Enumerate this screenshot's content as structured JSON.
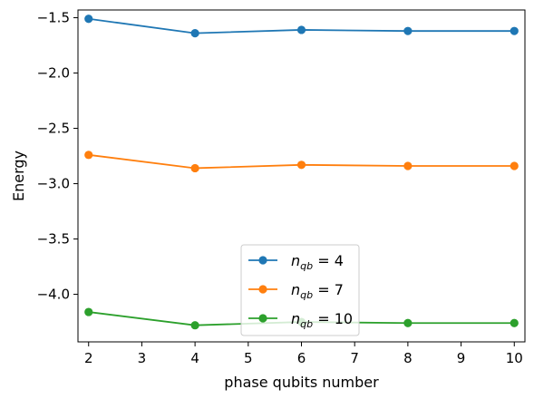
{
  "chart_data": {
    "type": "line",
    "xlabel": "phase qubits number",
    "ylabel": "Energy",
    "xlim": [
      1.8,
      10.2
    ],
    "ylim": [
      -4.43,
      -1.43
    ],
    "x_ticks": [
      2,
      3,
      4,
      5,
      6,
      7,
      8,
      9,
      10
    ],
    "x_tick_labels": [
      "2",
      "3",
      "4",
      "5",
      "6",
      "7",
      "8",
      "9",
      "10"
    ],
    "y_ticks": [
      -1.5,
      -2.0,
      -2.5,
      -3.0,
      -3.5,
      -4.0
    ],
    "y_tick_labels": [
      "−1.5",
      "−2.0",
      "−2.5",
      "−3.0",
      "−3.5",
      "−4.0"
    ],
    "grid": false,
    "legend_position": "lower-center",
    "x": [
      2,
      4,
      6,
      8,
      10
    ],
    "series": [
      {
        "name": "n_qb = 4",
        "legend_var": "n",
        "legend_sub": "qb",
        "legend_rest": " = 4",
        "color": "#1f77b4",
        "values": [
          -1.51,
          -1.64,
          -1.61,
          -1.62,
          -1.62
        ]
      },
      {
        "name": "n_qb = 7",
        "legend_var": "n",
        "legend_sub": "qb",
        "legend_rest": " = 7",
        "color": "#ff7f0e",
        "values": [
          -2.74,
          -2.86,
          -2.83,
          -2.84,
          -2.84
        ]
      },
      {
        "name": "n_qb = 10",
        "legend_var": "n",
        "legend_sub": "qb",
        "legend_rest": " = 10",
        "color": "#2ca02c",
        "values": [
          -4.16,
          -4.28,
          -4.25,
          -4.26,
          -4.26
        ]
      }
    ]
  }
}
